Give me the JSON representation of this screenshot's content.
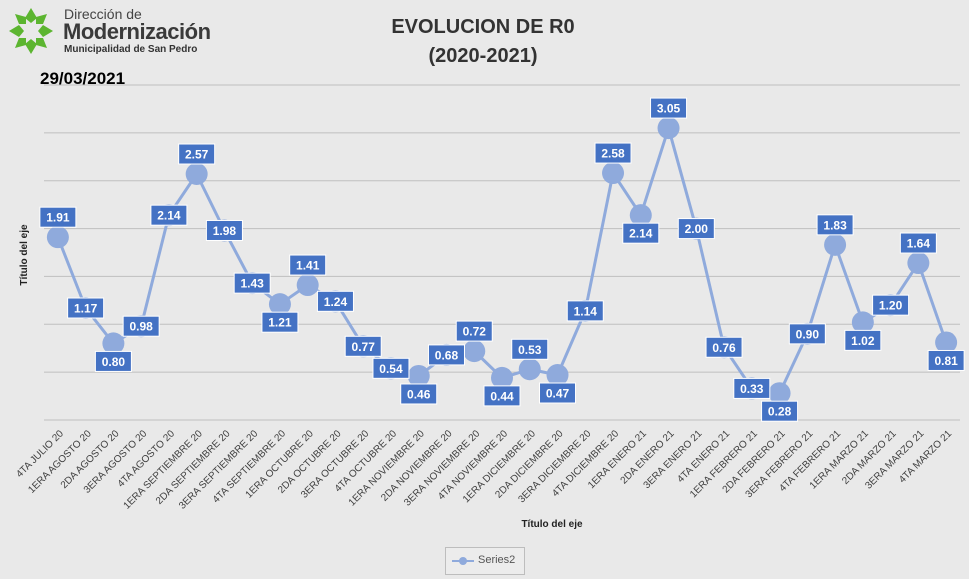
{
  "header": {
    "logo_line1": "Dirección de",
    "logo_line2": "Modernización",
    "logo_line3": "Municipalidad de San Pedro",
    "date": "29/03/2021"
  },
  "colors": {
    "line": "#8faadc",
    "marker": "#8faadc",
    "label_bg": "#4472c4",
    "label_text": "#ffffff",
    "grid": "#bfbfbf",
    "background": "#e9e9e9",
    "logo_green": "#5cb530"
  },
  "chart_data": {
    "type": "line",
    "title_line1": "EVOLUCION DE R0",
    "title_line2": "(2020-2021)",
    "xlabel": "Título del eje",
    "ylabel": "Título del eje",
    "ylim": [
      0,
      3.5
    ],
    "grid": true,
    "legend": "bottom",
    "categories": [
      "4TA JULIO 20",
      "1ERA AGOSTO 20",
      "2DA AGOSTO 20",
      "3ERA AGOSTO 20",
      "4TA AGOSTO 20",
      "1ERA SEPTIEMBRE 20",
      "2DA SEPTIEMBRE 20",
      "3ERA SEPTIEMBRE 20",
      "4TA SEPTIEMBRE 20",
      "1ERA OCTUBRE 20",
      "2DA OCTUBRE 20",
      "3ERA OCTUBRE 20",
      "4TA OCTUBRE 20",
      "1ERA NOVIEMBRE 20",
      "2DA NOVIEMBRE 20",
      "3ERA NOVIEMBRE 20",
      "4TA NOVIEMBRE 20",
      "1ERA DICIEMBRE 20",
      "2DA DICIEMBRE 20",
      "3ERA DICIEMBRE 20",
      "4TA DICIEMBRE 20",
      "1ERA ENERO 21",
      "2DA ENERO 21",
      "3ERA ENERO 21",
      "4TA ENERO 21",
      "1ERA FEBRERO 21",
      "2DA FEBRERO 21",
      "3ERA FEBRERO 21",
      "4TA FEBRERO 21",
      "1ERA MARZO 21",
      "2DA MARZO 21",
      "3ERA MARZO 21",
      "4TA MARZO 21"
    ],
    "series": [
      {
        "name": "Series2",
        "values": [
          1.91,
          1.17,
          0.8,
          0.98,
          2.14,
          2.57,
          1.98,
          1.43,
          1.21,
          1.41,
          1.24,
          0.77,
          0.54,
          0.46,
          0.68,
          0.72,
          0.44,
          0.53,
          0.47,
          1.14,
          2.58,
          2.14,
          3.05,
          2.0,
          0.76,
          0.33,
          0.28,
          0.9,
          1.83,
          1.02,
          1.2,
          1.64,
          0.81
        ],
        "labels": [
          "1.91",
          "1.17",
          "0.80",
          "0.98",
          "2.14",
          "2.57",
          "1.98",
          "1.43",
          "1.21",
          "1.41",
          "1.24",
          "0.77",
          "0.54",
          "0.46",
          "0.68",
          "0.72",
          "0.44",
          "0.53",
          "0.47",
          "1.14",
          "2.58",
          "2.14",
          "3.05",
          "2.00",
          "0.76",
          "0.33",
          "0.28",
          "0.90",
          "1.83",
          "1.02",
          "1.20",
          "1.64",
          "0.81"
        ]
      }
    ]
  }
}
